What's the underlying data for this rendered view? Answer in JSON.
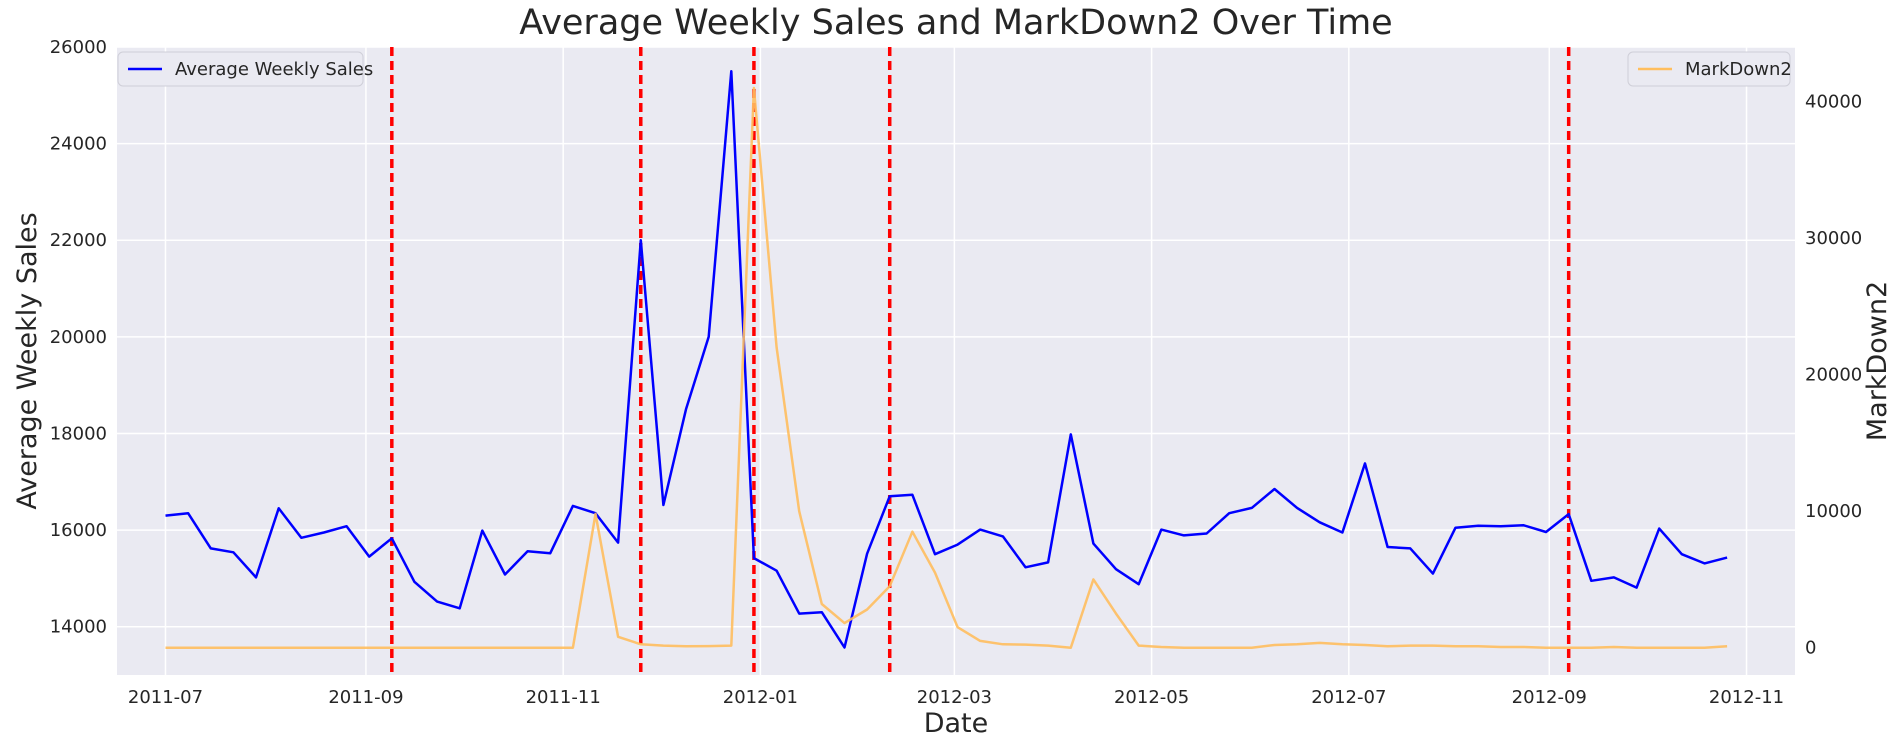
{
  "chart_data": {
    "type": "line",
    "title": "Average Weekly Sales and MarkDown2 Over Time",
    "xlabel": "Date",
    "ylabel_left": "Average Weekly Sales",
    "ylabel_right": "MarkDown2",
    "xlim": [
      "2011-06-16",
      "2012-11-16"
    ],
    "ylim_left": [
      13000,
      26000
    ],
    "ylim_right": [
      -2000,
      44000
    ],
    "x_ticks": [
      "2011-07",
      "2011-09",
      "2011-11",
      "2012-01",
      "2012-03",
      "2012-05",
      "2012-07",
      "2012-09",
      "2012-11"
    ],
    "y_ticks_left": [
      14000,
      16000,
      18000,
      20000,
      22000,
      24000,
      26000
    ],
    "y_ticks_right": [
      0,
      10000,
      20000,
      30000,
      40000
    ],
    "grid": true,
    "holiday_lines": [
      "2011-09-09",
      "2011-11-25",
      "2011-12-30",
      "2012-02-10",
      "2012-09-07"
    ],
    "colors": {
      "sales": "#0000ff",
      "markdown": "#ffbe5e",
      "holiday": "#ff0000",
      "plot_background": "#eaeaf2",
      "grid": "#ffffff"
    },
    "legend_left_placement": "top-left",
    "legend_right_placement": "top-right",
    "dates": [
      "2011-07-01",
      "2011-07-08",
      "2011-07-15",
      "2011-07-22",
      "2011-07-29",
      "2011-08-05",
      "2011-08-12",
      "2011-08-19",
      "2011-08-26",
      "2011-09-02",
      "2011-09-09",
      "2011-09-16",
      "2011-09-23",
      "2011-09-30",
      "2011-10-07",
      "2011-10-14",
      "2011-10-21",
      "2011-10-28",
      "2011-11-04",
      "2011-11-11",
      "2011-11-18",
      "2011-11-25",
      "2011-12-02",
      "2011-12-09",
      "2011-12-16",
      "2011-12-23",
      "2011-12-30",
      "2012-01-06",
      "2012-01-13",
      "2012-01-20",
      "2012-01-27",
      "2012-02-03",
      "2012-02-10",
      "2012-02-17",
      "2012-02-24",
      "2012-03-02",
      "2012-03-09",
      "2012-03-16",
      "2012-03-23",
      "2012-03-30",
      "2012-04-06",
      "2012-04-13",
      "2012-04-20",
      "2012-04-27",
      "2012-05-04",
      "2012-05-11",
      "2012-05-18",
      "2012-05-25",
      "2012-06-01",
      "2012-06-08",
      "2012-06-15",
      "2012-06-22",
      "2012-06-29",
      "2012-07-06",
      "2012-07-13",
      "2012-07-20",
      "2012-07-27",
      "2012-08-03",
      "2012-08-10",
      "2012-08-17",
      "2012-08-24",
      "2012-08-31",
      "2012-09-07",
      "2012-09-14",
      "2012-09-21",
      "2012-09-28",
      "2012-10-05",
      "2012-10-12",
      "2012-10-19",
      "2012-10-26"
    ],
    "series": [
      {
        "name": "Average Weekly Sales",
        "axis": "left",
        "values": [
          16300,
          16350,
          15620,
          15540,
          15020,
          16450,
          15840,
          15950,
          16080,
          15450,
          15830,
          14930,
          14520,
          14380,
          15990,
          15080,
          15560,
          15520,
          16500,
          16350,
          15740,
          22000,
          16520,
          18500,
          20000,
          25500,
          15420,
          15160,
          14270,
          14300,
          13570,
          15510,
          16700,
          16730,
          15500,
          15700,
          16010,
          15870,
          15230,
          15330,
          17980,
          15720,
          15190,
          14880,
          16010,
          15890,
          15930,
          16350,
          16460,
          16850,
          16460,
          16160,
          15950,
          17380,
          15650,
          15620,
          15100,
          16050,
          16090,
          16080,
          16100,
          15960,
          16330,
          14950,
          15020,
          14810,
          16030,
          15500,
          15310,
          15430
        ]
      },
      {
        "name": "MarkDown2",
        "axis": "right",
        "values": [
          0,
          0,
          0,
          0,
          0,
          0,
          0,
          0,
          0,
          0,
          0,
          0,
          0,
          0,
          0,
          0,
          0,
          0,
          0,
          9800,
          800,
          250,
          150,
          100,
          120,
          150,
          41000,
          22000,
          10000,
          3200,
          1800,
          2800,
          4500,
          8500,
          5500,
          1500,
          500,
          250,
          230,
          150,
          0,
          5000,
          2500,
          150,
          50,
          0,
          0,
          0,
          0,
          200,
          250,
          350,
          250,
          200,
          100,
          150,
          150,
          100,
          100,
          50,
          50,
          0,
          0,
          0,
          50,
          0,
          0,
          0,
          0,
          100
        ]
      }
    ]
  }
}
